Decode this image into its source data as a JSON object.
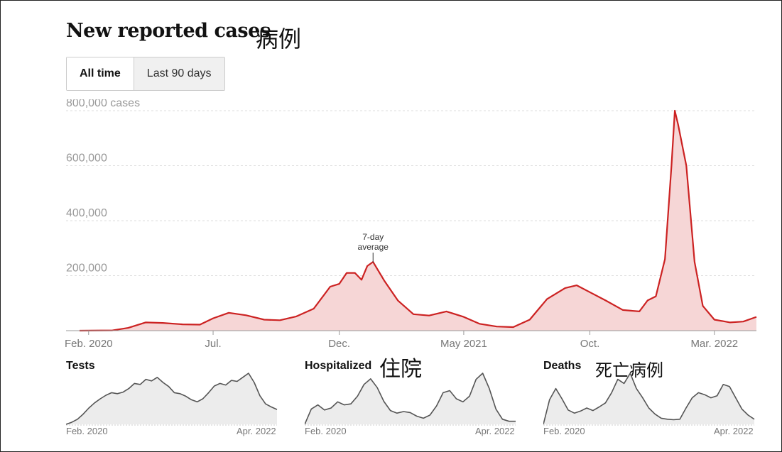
{
  "header": {
    "title": "New reported cases",
    "title_note": "病例",
    "toggle": [
      "All time",
      "Last 90 days"
    ],
    "active": "All time"
  },
  "colors": {
    "line": "#cc2222",
    "fill": "#f6d6d6",
    "small_line": "#555555",
    "small_fill": "#ececec"
  },
  "chart_data": [
    {
      "type": "area",
      "title": "New reported cases",
      "ylabel": "cases",
      "y_tick_labels": [
        "800,000 cases",
        "600,000",
        "400,000",
        "200,000"
      ],
      "y_ticks": [
        800000,
        600000,
        400000,
        200000
      ],
      "ylim": [
        0,
        800000
      ],
      "x_tick_labels": [
        "Feb. 2020",
        "Jul.",
        "Dec.",
        "May 2021",
        "Oct.",
        "Mar. 2022"
      ],
      "x_tick_dates": [
        "2020-02-01",
        "2020-07-01",
        "2020-12-01",
        "2021-05-01",
        "2021-10-01",
        "2022-03-01"
      ],
      "xlim": [
        "2020-01-21",
        "2022-04-21"
      ],
      "annotation": {
        "text": [
          "7-day",
          "average"
        ],
        "date": "2021-01-11"
      },
      "series": [
        {
          "name": "7-day average",
          "x": [
            "2020-01-21",
            "2020-03-01",
            "2020-03-20",
            "2020-04-10",
            "2020-05-01",
            "2020-05-25",
            "2020-06-15",
            "2020-07-01",
            "2020-07-20",
            "2020-08-10",
            "2020-09-01",
            "2020-09-20",
            "2020-10-10",
            "2020-10-31",
            "2020-11-20",
            "2020-12-01",
            "2020-12-10",
            "2020-12-20",
            "2020-12-28",
            "2021-01-04",
            "2021-01-11",
            "2021-01-25",
            "2021-02-10",
            "2021-03-01",
            "2021-03-20",
            "2021-04-10",
            "2021-05-01",
            "2021-05-20",
            "2021-06-10",
            "2021-06-30",
            "2021-07-20",
            "2021-08-10",
            "2021-09-01",
            "2021-09-15",
            "2021-10-01",
            "2021-10-20",
            "2021-11-10",
            "2021-11-30",
            "2021-12-10",
            "2021-12-20",
            "2021-12-31",
            "2022-01-08",
            "2022-01-12",
            "2022-01-16",
            "2022-01-26",
            "2022-02-05",
            "2022-02-15",
            "2022-03-01",
            "2022-03-20",
            "2022-04-05",
            "2022-04-21"
          ],
          "values": [
            0,
            1000,
            10000,
            30000,
            28000,
            23000,
            22000,
            45000,
            65000,
            56000,
            40000,
            38000,
            52000,
            80000,
            160000,
            170000,
            210000,
            210000,
            185000,
            235000,
            250000,
            180000,
            110000,
            60000,
            55000,
            70000,
            50000,
            25000,
            15000,
            13000,
            40000,
            115000,
            155000,
            165000,
            140000,
            110000,
            75000,
            70000,
            110000,
            125000,
            260000,
            600000,
            800000,
            750000,
            600000,
            250000,
            90000,
            40000,
            30000,
            33000,
            50000
          ]
        }
      ]
    },
    {
      "type": "area",
      "title": "Tests",
      "x_tick_labels": [
        "Feb. 2020",
        "Apr. 2022"
      ],
      "series": [
        {
          "values": [
            0.0,
            0.04,
            0.1,
            0.2,
            0.32,
            0.42,
            0.5,
            0.57,
            0.62,
            0.6,
            0.63,
            0.7,
            0.8,
            0.78,
            0.88,
            0.85,
            0.92,
            0.82,
            0.74,
            0.62,
            0.6,
            0.55,
            0.48,
            0.44,
            0.5,
            0.62,
            0.75,
            0.8,
            0.77,
            0.86,
            0.84,
            0.92,
            1.0,
            0.82,
            0.56,
            0.4,
            0.34,
            0.29
          ]
        }
      ]
    },
    {
      "type": "area",
      "title": "Hospitalized",
      "title_note": "住院",
      "x_tick_labels": [
        "Feb. 2020",
        "Apr. 2022"
      ],
      "series": [
        {
          "values": [
            0.0,
            0.3,
            0.38,
            0.28,
            0.32,
            0.44,
            0.38,
            0.4,
            0.55,
            0.78,
            0.89,
            0.72,
            0.45,
            0.27,
            0.22,
            0.25,
            0.23,
            0.16,
            0.12,
            0.18,
            0.36,
            0.62,
            0.66,
            0.5,
            0.44,
            0.55,
            0.88,
            1.0,
            0.7,
            0.3,
            0.1,
            0.06,
            0.06
          ]
        }
      ]
    },
    {
      "type": "area",
      "title": "Deaths",
      "title_note": "死亡病例",
      "x_tick_labels": [
        "Feb. 2020",
        "Apr. 2022"
      ],
      "series": [
        {
          "values": [
            0.0,
            0.48,
            0.7,
            0.5,
            0.28,
            0.22,
            0.26,
            0.32,
            0.27,
            0.34,
            0.42,
            0.62,
            0.88,
            0.8,
            1.0,
            0.7,
            0.52,
            0.32,
            0.2,
            0.12,
            0.1,
            0.09,
            0.1,
            0.32,
            0.52,
            0.62,
            0.58,
            0.52,
            0.56,
            0.78,
            0.74,
            0.52,
            0.3,
            0.18,
            0.1
          ]
        }
      ]
    }
  ]
}
